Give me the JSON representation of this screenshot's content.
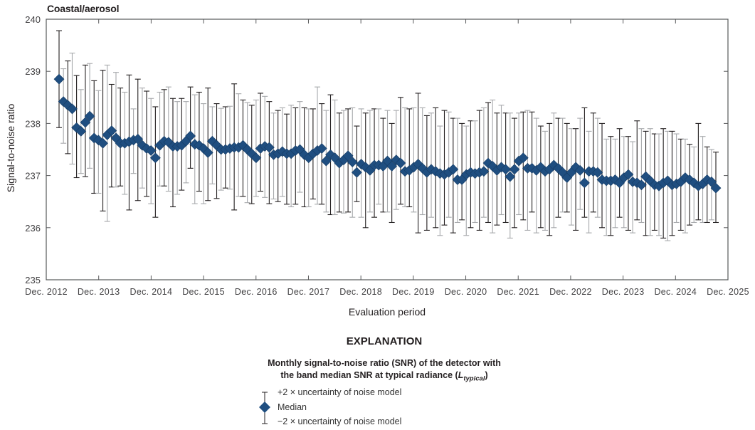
{
  "panel_title": "Coastal/aerosol",
  "legend": {
    "title": "EXPLANATION",
    "subtitle_line1": "Monthly signal-to-noise ratio (SNR) of the detector with",
    "subtitle_line2_prefix": "the band median SNR at typical radiance (",
    "subtitle_L": "L",
    "subtitle_sub": "typical",
    "subtitle_suffix": ")",
    "upper_label": "+2 × uncertainty of noise model",
    "median_label": "Median",
    "lower_label": "−2 × uncertainty of noise model"
  },
  "colors": {
    "marker": "#1f4e80",
    "marker_edge": "#173c63",
    "errorbar_dark": "#231f20",
    "errorbar_light": "#a7a9ac",
    "axis": "#58595b"
  },
  "chart_data": {
    "type": "scatter",
    "title": "Coastal/aerosol",
    "xlabel": "Evaluation period",
    "ylabel": "Signal-to-noise ratio",
    "ylim": [
      235,
      240
    ],
    "yticks": [
      235,
      236,
      237,
      238,
      239,
      240
    ],
    "xticks": [
      "Dec. 2012",
      "Dec. 2013",
      "Dec. 2014",
      "Dec. 2015",
      "Dec. 2016",
      "Dec. 2017",
      "Dec. 2018",
      "Dec. 2019",
      "Dec. 2020",
      "Dec. 2021",
      "Dec. 2022",
      "Dec. 2023",
      "Dec. 2024",
      "Dec. 2025"
    ],
    "x_start_month_offset": 3,
    "grid": false,
    "legend_position": "below",
    "series": [
      {
        "name": "Median",
        "values": [
          238.85,
          238.42,
          238.35,
          238.28,
          237.92,
          237.85,
          238.02,
          238.14,
          237.72,
          237.68,
          237.62,
          237.78,
          237.86,
          237.72,
          237.62,
          237.62,
          237.65,
          237.68,
          237.7,
          237.58,
          237.52,
          237.48,
          237.34,
          237.58,
          237.66,
          237.64,
          237.56,
          237.56,
          237.58,
          237.66,
          237.76,
          237.6,
          237.58,
          237.52,
          237.44,
          237.66,
          237.58,
          237.5,
          237.5,
          237.52,
          237.54,
          237.54,
          237.58,
          237.5,
          237.42,
          237.34,
          237.52,
          237.56,
          237.54,
          237.4,
          237.42,
          237.46,
          237.42,
          237.42,
          237.48,
          237.5,
          237.4,
          237.34,
          237.42,
          237.48,
          237.52,
          237.28,
          237.4,
          237.34,
          237.24,
          237.3,
          237.38,
          237.26,
          237.06,
          237.22,
          237.16,
          237.1,
          237.2,
          237.2,
          237.18,
          237.28,
          237.18,
          237.3,
          237.24,
          237.08,
          237.1,
          237.16,
          237.22,
          237.14,
          237.06,
          237.12,
          237.08,
          237.04,
          237.02,
          237.06,
          237.12,
          236.92,
          236.92,
          237.02,
          237.06,
          237.04,
          237.06,
          237.08,
          237.24,
          237.18,
          237.1,
          237.16,
          237.12,
          236.98,
          237.12,
          237.28,
          237.34,
          237.14,
          237.14,
          237.1,
          237.16,
          237.08,
          237.12,
          237.2,
          237.14,
          237.06,
          236.96,
          237.06,
          237.16,
          237.1,
          236.86,
          237.08,
          237.08,
          237.06,
          236.92,
          236.9,
          236.9,
          236.92,
          236.86,
          236.96,
          237.02,
          236.88,
          236.86,
          236.82,
          236.98,
          236.9,
          236.82,
          236.8,
          236.86,
          236.9,
          236.82,
          236.84,
          236.88,
          236.96,
          236.92,
          236.86,
          236.8,
          236.84,
          236.92,
          236.88,
          236.76
        ],
        "upper": [
          239.78,
          239.05,
          239.2,
          239.35,
          238.92,
          238.65,
          239.12,
          239.15,
          238.82,
          238.63,
          239.02,
          239.12,
          238.75,
          238.98,
          238.68,
          238.6,
          238.93,
          238.28,
          238.85,
          238.68,
          238.62,
          238.48,
          238.32,
          238.6,
          238.65,
          238.7,
          238.48,
          238.42,
          238.48,
          238.42,
          238.7,
          238.55,
          238.6,
          238.38,
          238.68,
          238.32,
          238.38,
          238.29,
          238.32,
          238.33,
          238.76,
          238.57,
          238.45,
          238.4,
          238.35,
          238.45,
          238.58,
          238.52,
          238.42,
          238.2,
          238.25,
          238.3,
          238.18,
          238.35,
          238.3,
          238.42,
          238.3,
          238.28,
          238.28,
          238.7,
          238.38,
          238.25,
          238.55,
          238.45,
          238.2,
          238.25,
          238.28,
          238.3,
          237.95,
          238.28,
          238.2,
          238.25,
          238.28,
          238.28,
          238.1,
          238.25,
          238.0,
          238.25,
          238.5,
          238.3,
          238.28,
          238.3,
          238.58,
          238.3,
          238.15,
          238.2,
          238.3,
          237.95,
          238.25,
          238.22,
          238.1,
          238.1,
          238.0,
          237.95,
          238.05,
          238.05,
          238.25,
          238.3,
          238.4,
          238.45,
          238.2,
          238.35,
          238.2,
          238.2,
          238.1,
          238.2,
          238.22,
          238.25,
          238.22,
          238.1,
          237.95,
          237.85,
          238.0,
          238.2,
          238.1,
          238.1,
          238.0,
          237.9,
          237.9,
          238.1,
          238.3,
          237.85,
          238.2,
          238.1,
          238.0,
          237.7,
          237.75,
          237.7,
          237.9,
          237.75,
          237.75,
          237.65,
          238.05,
          237.9,
          237.85,
          237.9,
          237.8,
          237.8,
          237.9,
          237.85,
          237.85,
          237.8,
          237.7,
          237.7,
          237.6,
          237.55,
          238.0,
          237.75,
          237.55,
          237.5,
          237.45
        ],
        "lower": [
          237.92,
          237.62,
          237.42,
          237.22,
          236.96,
          237.04,
          236.98,
          237.14,
          236.66,
          236.66,
          236.32,
          236.12,
          236.78,
          236.78,
          236.8,
          236.64,
          236.34,
          237.04,
          236.52,
          236.76,
          236.6,
          236.46,
          236.2,
          236.8,
          236.8,
          236.7,
          236.4,
          236.64,
          236.72,
          236.86,
          237.14,
          236.46,
          236.7,
          236.46,
          236.52,
          236.84,
          236.56,
          236.72,
          236.76,
          236.74,
          236.34,
          236.6,
          236.6,
          236.48,
          236.46,
          236.6,
          236.7,
          236.58,
          236.46,
          236.55,
          236.5,
          236.6,
          236.45,
          236.4,
          236.45,
          236.68,
          236.4,
          236.4,
          236.55,
          236.45,
          236.45,
          236.3,
          236.25,
          236.25,
          236.3,
          236.28,
          236.3,
          236.2,
          236.5,
          236.2,
          236.0,
          236.3,
          236.2,
          236.45,
          236.3,
          236.3,
          236.1,
          236.35,
          236.45,
          236.4,
          236.4,
          236.3,
          235.9,
          236.25,
          235.95,
          236.2,
          236.0,
          235.85,
          236.05,
          236.2,
          235.9,
          236.1,
          236.15,
          235.85,
          236.0,
          236.1,
          235.95,
          236.2,
          236.1,
          235.9,
          236.05,
          236.25,
          236.1,
          235.8,
          236.0,
          236.25,
          236.15,
          235.95,
          236.3,
          235.9,
          236.0,
          235.95,
          235.85,
          236.0,
          236.2,
          236.3,
          236.3,
          236.05,
          235.95,
          236.35,
          236.2,
          235.9,
          236.3,
          236.2,
          236.0,
          235.85,
          235.85,
          236.0,
          236.2,
          236.0,
          235.95,
          235.9,
          236.15,
          236.1,
          235.85,
          235.85,
          235.95,
          235.85,
          235.8,
          235.75,
          235.85,
          236.1,
          235.95,
          235.9,
          236.05,
          236.1,
          236.15,
          236.1,
          236.1,
          236.15,
          236.1
        ]
      }
    ]
  }
}
